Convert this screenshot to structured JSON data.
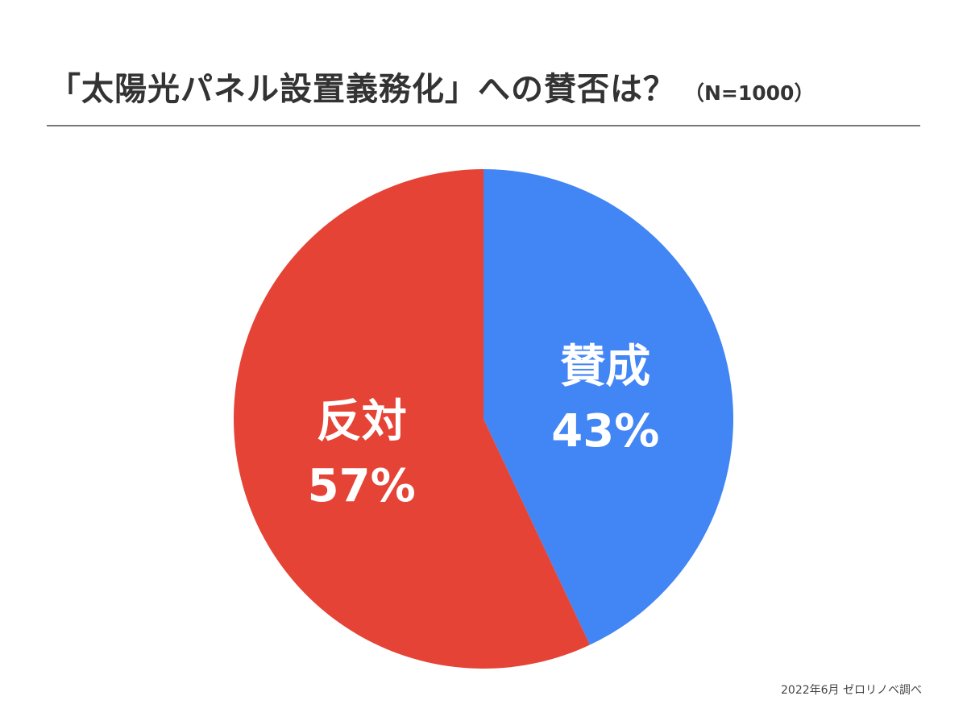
{
  "header": {
    "title": "「太陽光パネル設置義務化」への賛否は？",
    "sample_size": "（N=1000）"
  },
  "chart_data": {
    "type": "pie",
    "title": "「太陽光パネル設置義務化」への賛否は？",
    "subtitle": "（N=1000）",
    "slices": [
      {
        "label": "賛成",
        "value": 43,
        "value_label": "43%",
        "color": "#4285F4"
      },
      {
        "label": "反対",
        "value": 57,
        "value_label": "57%",
        "color": "#E54335"
      }
    ],
    "start_angle": "12 o'clock",
    "direction": "clockwise",
    "legend": "none"
  },
  "footer": {
    "source": "2022年6月 ゼロリノベ調べ"
  }
}
